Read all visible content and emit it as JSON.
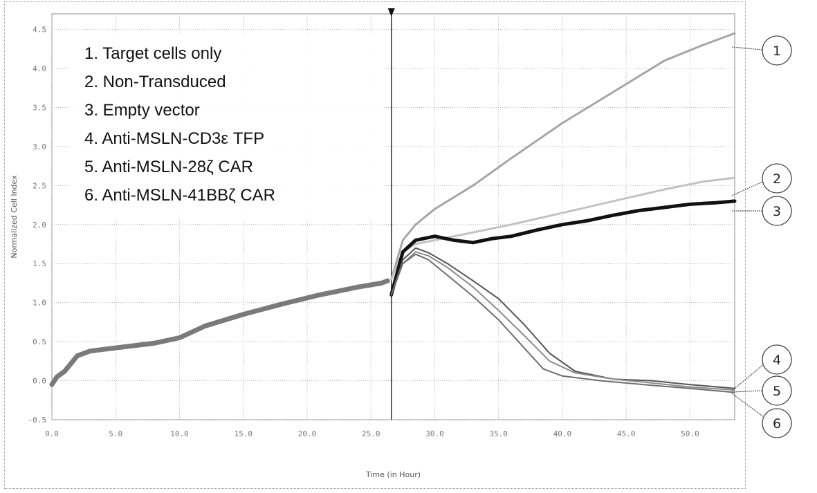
{
  "chart_data": {
    "type": "line",
    "title": "",
    "xlabel": "Time (in Hour)",
    "ylabel": "Normalized Cell Index",
    "xlim": [
      0,
      53.5
    ],
    "ylim": [
      -0.5,
      4.7
    ],
    "grid": true,
    "event_marker_x": 26.6,
    "x_ticks": [
      0,
      5,
      10,
      15,
      20,
      25,
      30,
      35,
      40,
      45,
      50
    ],
    "x_tick_labels": [
      "0.0",
      "5.0",
      "10.0",
      "15.0",
      "20.0",
      "25.0",
      "30.0",
      "35.0",
      "40.0",
      "45.0",
      "50.0"
    ],
    "y_ticks": [
      -0.5,
      0,
      0.5,
      1,
      1.5,
      2,
      2.5,
      3,
      3.5,
      4,
      4.5
    ],
    "y_tick_labels": [
      "-0.5",
      "0.0",
      "0.5",
      "1.0",
      "1.5",
      "2.0",
      "2.5",
      "3.0",
      "3.5",
      "4.0",
      "4.5"
    ],
    "legend_position": "top-left",
    "legend": [
      "1. Target cells only",
      "2. Non-Transduced",
      "3. Empty vector",
      "4. Anti-MSLN-CD3ε TFP",
      "5. Anti-MSLN-28ζ CAR",
      "6. Anti-MSLN-41BBζ CAR"
    ],
    "series": [
      {
        "label": "1",
        "color": "#a6a6a6",
        "width": 3,
        "x": [
          26.6,
          27.5,
          28.5,
          30,
          33,
          36,
          40,
          44,
          48,
          51,
          53.5
        ],
        "y": [
          1.3,
          1.8,
          2.0,
          2.2,
          2.5,
          2.85,
          3.3,
          3.7,
          4.1,
          4.3,
          4.45
        ]
      },
      {
        "label": "2",
        "color": "#c2c2c2",
        "width": 3,
        "x": [
          26.6,
          27.5,
          28.5,
          30,
          33,
          36,
          40,
          44,
          48,
          51,
          53.5
        ],
        "y": [
          1.3,
          1.65,
          1.75,
          1.8,
          1.9,
          2.0,
          2.15,
          2.3,
          2.45,
          2.55,
          2.6
        ]
      },
      {
        "label": "3",
        "color": "#111111",
        "width": 5,
        "x": [
          26.6,
          27.5,
          28.5,
          30,
          31.5,
          33,
          34.5,
          36,
          38,
          40,
          42,
          44,
          46,
          48,
          50,
          52,
          53.5
        ],
        "y": [
          1.1,
          1.65,
          1.8,
          1.85,
          1.8,
          1.77,
          1.82,
          1.85,
          1.93,
          2.0,
          2.05,
          2.12,
          2.18,
          2.22,
          2.26,
          2.28,
          2.3
        ]
      },
      {
        "label": "4",
        "color": "#555555",
        "width": 2,
        "x": [
          26.6,
          27.5,
          28.5,
          29.5,
          31,
          33,
          35,
          37,
          39,
          41,
          44,
          47,
          50,
          53.5
        ],
        "y": [
          1.1,
          1.55,
          1.7,
          1.64,
          1.5,
          1.28,
          1.05,
          0.72,
          0.35,
          0.12,
          0.02,
          0.0,
          -0.05,
          -0.1
        ]
      },
      {
        "label": "5",
        "color": "#8c8c8c",
        "width": 2,
        "x": [
          26.6,
          27.5,
          28.5,
          29.5,
          31,
          33,
          35,
          37,
          39,
          41,
          44,
          47,
          50,
          53.5
        ],
        "y": [
          1.1,
          1.5,
          1.65,
          1.6,
          1.45,
          1.2,
          0.9,
          0.58,
          0.25,
          0.1,
          0.02,
          -0.03,
          -0.08,
          -0.12
        ]
      },
      {
        "label": "6",
        "color": "#6e6e6e",
        "width": 2,
        "x": [
          26.6,
          27.5,
          28.5,
          29.5,
          31,
          33,
          35,
          37,
          38.5,
          40,
          43,
          47,
          50,
          53.5
        ],
        "y": [
          1.1,
          1.5,
          1.62,
          1.55,
          1.35,
          1.08,
          0.78,
          0.42,
          0.15,
          0.06,
          0.0,
          -0.06,
          -0.1,
          -0.15
        ]
      },
      {
        "label": "pre",
        "color": "#7a7a7a",
        "width": 7,
        "x": [
          0,
          0.4,
          1.0,
          2.0,
          3.0,
          5.0,
          8.0,
          10.0,
          12.0,
          15.0,
          18.0,
          21.0,
          24.0,
          25.8,
          26.3
        ],
        "y": [
          -0.05,
          0.05,
          0.12,
          0.32,
          0.38,
          0.42,
          0.48,
          0.55,
          0.7,
          0.85,
          0.98,
          1.1,
          1.2,
          1.25,
          1.28
        ]
      }
    ],
    "callouts": [
      "1",
      "2",
      "3",
      "4",
      "5",
      "6"
    ]
  }
}
